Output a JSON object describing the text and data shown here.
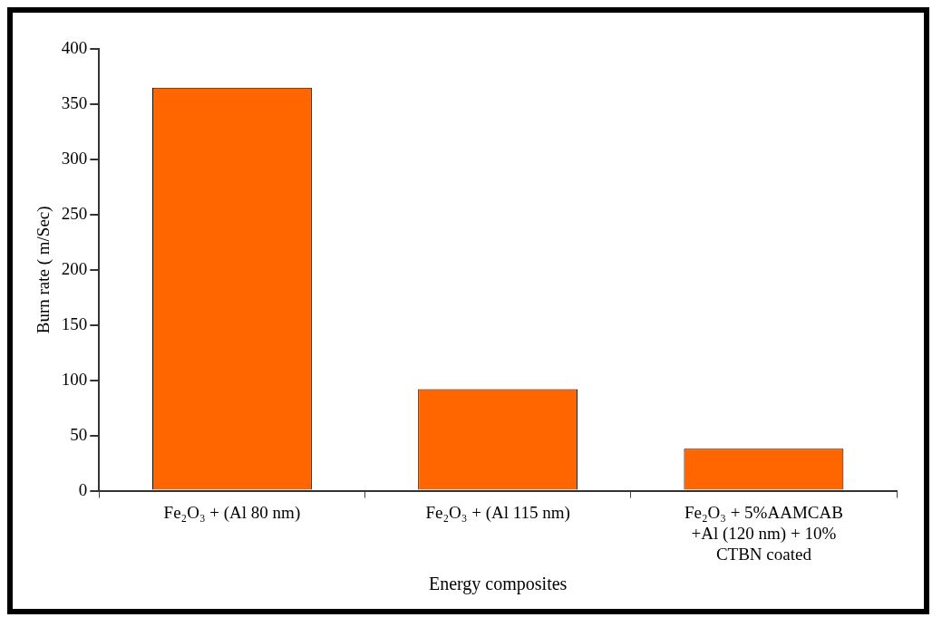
{
  "chart_data": {
    "type": "bar",
    "categories": [
      "Fe₂O₃ + (Al 80 nm)",
      "Fe₂O₃ + (Al 115 nm)",
      "Fe₂O₃ + 5%AAMCAB +Al (120 nm) + 10% CTBN coated"
    ],
    "values": [
      365,
      92,
      38
    ],
    "color": "#ff6600",
    "xlabel": "Energy composites",
    "ylabel": "Burn rate ( m/Sec)",
    "ylim": [
      0,
      400
    ],
    "yticks": [
      0,
      50,
      100,
      150,
      200,
      250,
      300,
      350,
      400
    ],
    "grid": false,
    "legend": false
  }
}
